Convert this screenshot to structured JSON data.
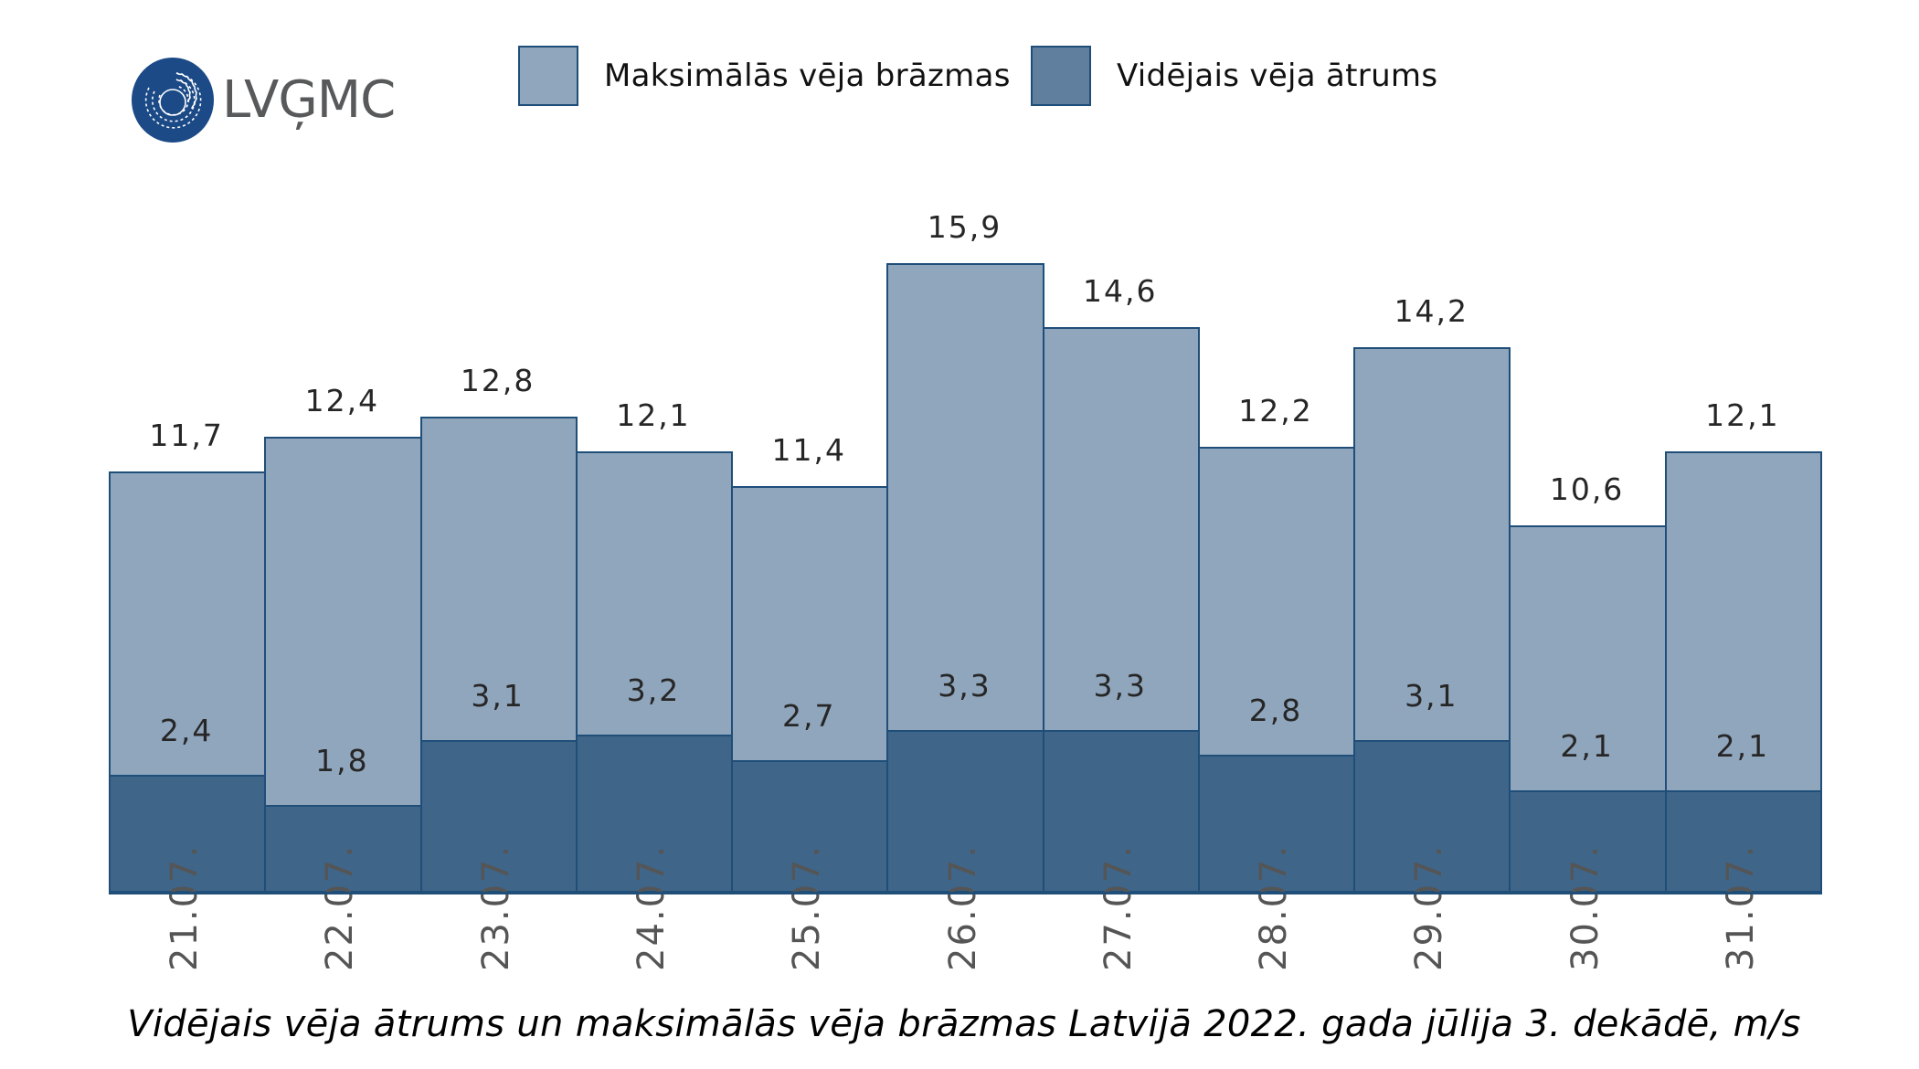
{
  "logo": {
    "text": "LVĢMC",
    "color": "#1b4a87",
    "text_color": "#58595b"
  },
  "legend": [
    {
      "label": "Maksimālās vēja brāzmas",
      "color": "#90a6bd"
    },
    {
      "label": "Vidējais vēja ātrums",
      "color": "#607f9f"
    }
  ],
  "caption": "Vidējais vēja ātrums un maksimālās vēja brāzmas Latvijā 2022. gada jūlija 3. dekādē, m/s",
  "colors": {
    "max_fill": "#90a6bd",
    "avg_fill": "#3f6589",
    "border": "#1f4e79"
  },
  "chart_data": {
    "type": "bar",
    "title": "Vidējais vēja ātrums un maksimālās vēja brāzmas Latvijā 2022. gada jūlija 3. dekādē, m/s",
    "xlabel": "",
    "ylabel": "m/s",
    "categories": [
      "21.07.",
      "22.07.",
      "23.07.",
      "24.07.",
      "25.07.",
      "26.07.",
      "27.07.",
      "28.07.",
      "29.07.",
      "30.07.",
      "31.07."
    ],
    "series": [
      {
        "name": "Maksimālās vēja brāzmas",
        "values": [
          11.7,
          12.4,
          12.8,
          12.1,
          11.4,
          15.9,
          14.6,
          12.2,
          14.2,
          10.6,
          12.1
        ],
        "labels": [
          "11,7",
          "12,4",
          "12,8",
          "12,1",
          "11,4",
          "15,9",
          "14,6",
          "12,2",
          "14,2",
          "10,6",
          "12,1"
        ]
      },
      {
        "name": "Vidējais vēja ātrums",
        "values": [
          2.4,
          1.8,
          3.1,
          3.2,
          2.7,
          3.3,
          3.3,
          2.8,
          3.1,
          2.1,
          2.1
        ],
        "labels": [
          "2,4",
          "1,8",
          "3,1",
          "3,2",
          "2,7",
          "3,3",
          "3,3",
          "2,8",
          "3,1",
          "2,1",
          "2,1"
        ]
      }
    ],
    "overlapping_bars": true,
    "grid": false,
    "legend_position": "top",
    "y_axis_visible": false
  }
}
